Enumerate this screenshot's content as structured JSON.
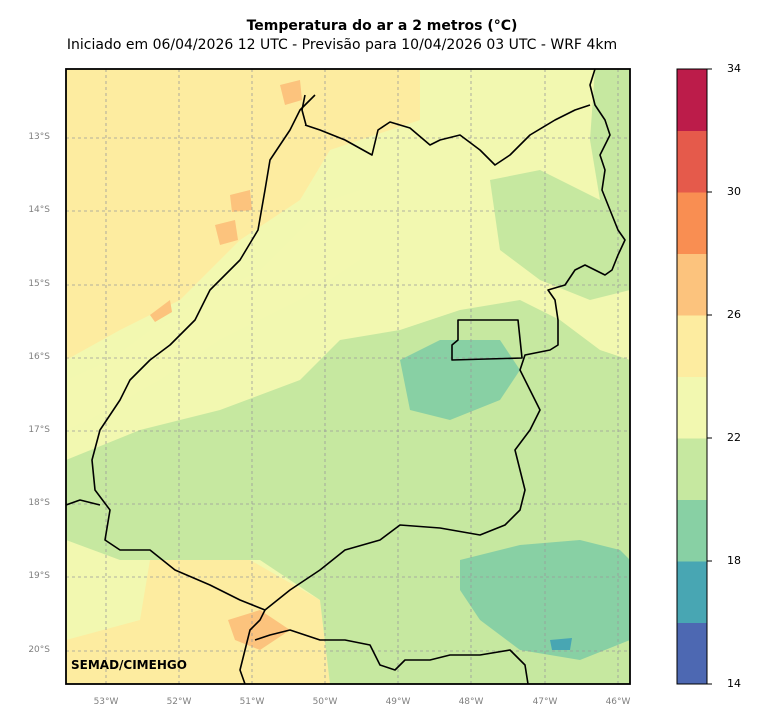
{
  "title": "Temperatura do ar a 2 metros (°C)",
  "subtitle": "Iniciado em 06/04/2026 12 UTC - Previsão para 10/04/2026 03 UTC - WRF 4km",
  "credit": "SEMAD/CIMEHGO",
  "latitude_ticks": [
    "13°S",
    "14°S",
    "15°S",
    "16°S",
    "17°S",
    "18°S",
    "19°S",
    "20°S"
  ],
  "longitude_ticks": [
    "53°W",
    "52°W",
    "51°W",
    "50°W",
    "49°W",
    "48°W",
    "47°W",
    "46°W"
  ],
  "colorbar": {
    "tick_labels": [
      "34",
      "30",
      "26",
      "22",
      "18",
      "14"
    ],
    "levels": [
      14,
      16,
      18,
      20,
      22,
      24,
      26,
      28,
      30,
      32,
      34
    ],
    "colors": [
      "#4d68b2",
      "#48a6b3",
      "#88d0a4",
      "#c6e8a0",
      "#f2f8b0",
      "#fdeca0",
      "#fcc37d",
      "#f98e52",
      "#e55a4b",
      "#bc1c4a"
    ]
  },
  "field_colors": {
    "cool_green": "#c6e8a0",
    "teal": "#88d0a4",
    "blue": "#48a6b3",
    "pale_yellow": "#f2f8b0",
    "yellow": "#fdeca0",
    "orange": "#fcc37d"
  }
}
